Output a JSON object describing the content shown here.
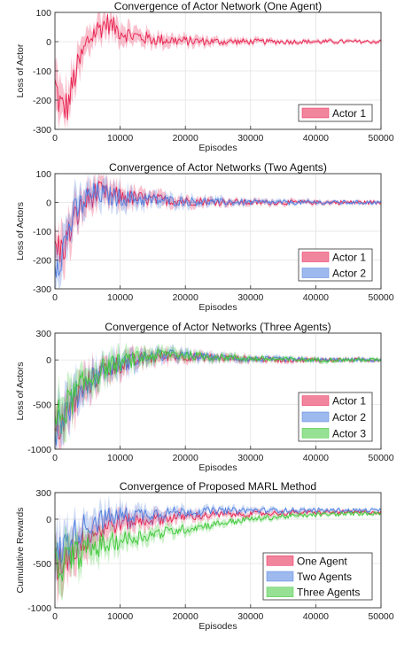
{
  "chart_data": [
    {
      "type": "line",
      "title": "Convergence of Actor Network (One Agent)",
      "xlabel": "Episodes",
      "ylabel": "Loss of Actor",
      "xlim": [
        0,
        50000
      ],
      "ylim": [
        -300,
        100
      ],
      "xticks": [
        "0",
        "10000",
        "20000",
        "30000",
        "40000",
        "50000"
      ],
      "yticks": [
        "100",
        "0",
        "-100",
        "-200",
        "-300"
      ],
      "grid": true,
      "legend_position": "bottom-right",
      "series": [
        {
          "name": "Actor 1",
          "color": "#e8214f",
          "x": [
            0,
            1000,
            2000,
            3000,
            4000,
            5000,
            6000,
            7000,
            8000,
            9000,
            10000,
            12000,
            15000,
            20000,
            25000,
            30000,
            35000,
            40000,
            45000,
            50000
          ],
          "y": [
            -150,
            -230,
            -220,
            -120,
            -60,
            0,
            30,
            50,
            65,
            50,
            35,
            20,
            8,
            2,
            0,
            0,
            0,
            0,
            0,
            0
          ]
        }
      ]
    },
    {
      "type": "line",
      "title": "Convergence of Actor Networks (Two Agents)",
      "xlabel": "Episodes",
      "ylabel": "Loss of Actors",
      "xlim": [
        0,
        50000
      ],
      "ylim": [
        -300,
        100
      ],
      "xticks": [
        "0",
        "10000",
        "20000",
        "30000",
        "40000",
        "50000"
      ],
      "yticks": [
        "100",
        "0",
        "-100",
        "-200",
        "-300"
      ],
      "grid": true,
      "legend_position": "bottom-right",
      "series": [
        {
          "name": "Actor 1",
          "color": "#e8214f",
          "x": [
            0,
            1000,
            2000,
            3000,
            4000,
            5000,
            6000,
            7000,
            8000,
            10000,
            12000,
            15000,
            20000,
            25000,
            30000,
            40000,
            50000
          ],
          "y": [
            -150,
            -170,
            -120,
            -60,
            -20,
            10,
            30,
            35,
            25,
            20,
            15,
            10,
            5,
            2,
            0,
            0,
            0
          ]
        },
        {
          "name": "Actor 2",
          "color": "#4f7fe0",
          "x": [
            0,
            1000,
            2000,
            3000,
            4000,
            5000,
            6000,
            7000,
            8000,
            10000,
            12000,
            15000,
            20000,
            25000,
            30000,
            40000,
            50000
          ],
          "y": [
            -200,
            -180,
            -100,
            -40,
            -10,
            15,
            28,
            30,
            22,
            18,
            12,
            8,
            4,
            2,
            0,
            0,
            0
          ]
        }
      ]
    },
    {
      "type": "line",
      "title": "Convergence of Actor Networks (Three Agents)",
      "xlabel": "Episodes",
      "ylabel": "Loss of Actors",
      "xlim": [
        0,
        50000
      ],
      "ylim": [
        -1000,
        300
      ],
      "xticks": [
        "0",
        "10000",
        "20000",
        "30000",
        "40000",
        "50000"
      ],
      "yticks": [
        "300",
        "0",
        "-500",
        "-1000"
      ],
      "grid": true,
      "legend_position": "bottom-right",
      "series": [
        {
          "name": "Actor 1",
          "color": "#e8214f",
          "x": [
            0,
            2000,
            4000,
            6000,
            8000,
            10000,
            14000,
            18000,
            22000,
            26000,
            30000,
            35000,
            40000,
            45000,
            50000
          ],
          "y": [
            -800,
            -600,
            -350,
            -200,
            -100,
            -50,
            20,
            50,
            30,
            20,
            10,
            0,
            0,
            0,
            0
          ]
        },
        {
          "name": "Actor 2",
          "color": "#4f7fe0",
          "x": [
            0,
            2000,
            4000,
            6000,
            8000,
            10000,
            14000,
            18000,
            22000,
            26000,
            30000,
            35000,
            40000,
            45000,
            50000
          ],
          "y": [
            -750,
            -550,
            -320,
            -180,
            -90,
            -40,
            30,
            60,
            35,
            25,
            10,
            5,
            0,
            0,
            0
          ]
        },
        {
          "name": "Actor 3",
          "color": "#3fc93a",
          "x": [
            0,
            2000,
            4000,
            6000,
            8000,
            10000,
            14000,
            18000,
            22000,
            26000,
            30000,
            35000,
            40000,
            45000,
            50000
          ],
          "y": [
            -700,
            -500,
            -300,
            -170,
            -80,
            -30,
            40,
            70,
            40,
            30,
            15,
            5,
            0,
            0,
            0
          ]
        }
      ]
    },
    {
      "type": "line",
      "title": "Convergence of Proposed MARL Method",
      "xlabel": "Episodes",
      "ylabel": "Cumulative Rewards",
      "xlim": [
        0,
        50000
      ],
      "ylim": [
        -1000,
        300
      ],
      "xticks": [
        "0",
        "10000",
        "20000",
        "30000",
        "40000",
        "50000"
      ],
      "yticks": [
        "300",
        "0",
        "-500",
        "-1000"
      ],
      "grid": true,
      "legend_position": "bottom-right",
      "series": [
        {
          "name": "One Agent",
          "color": "#e8214f",
          "x": [
            0,
            2000,
            4000,
            6000,
            8000,
            10000,
            15000,
            20000,
            25000,
            30000,
            35000,
            40000,
            45000,
            50000
          ],
          "y": [
            -550,
            -400,
            -250,
            -150,
            -80,
            -40,
            0,
            30,
            50,
            60,
            70,
            75,
            78,
            80
          ]
        },
        {
          "name": "Two Agents",
          "color": "#4f7fe0",
          "x": [
            0,
            2000,
            4000,
            6000,
            8000,
            10000,
            15000,
            20000,
            25000,
            30000,
            35000,
            40000,
            45000,
            50000
          ],
          "y": [
            -450,
            -250,
            -100,
            -30,
            10,
            40,
            70,
            85,
            95,
            100,
            100,
            100,
            100,
            100
          ]
        },
        {
          "name": "Three Agents",
          "color": "#3fc93a",
          "x": [
            0,
            2000,
            4000,
            6000,
            8000,
            10000,
            15000,
            20000,
            25000,
            30000,
            35000,
            40000,
            45000,
            50000
          ],
          "y": [
            -550,
            -450,
            -380,
            -320,
            -280,
            -240,
            -170,
            -110,
            -50,
            0,
            30,
            50,
            60,
            70
          ]
        }
      ]
    }
  ]
}
